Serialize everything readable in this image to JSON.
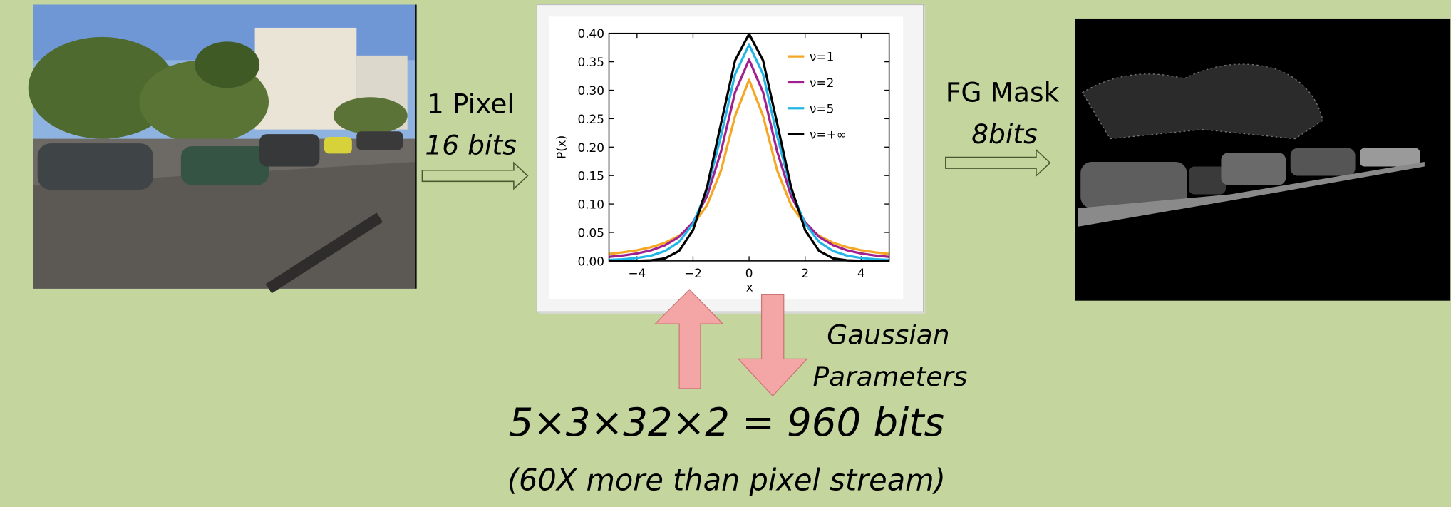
{
  "slide": {
    "input_label": "1 Pixel",
    "input_bits": "16 bits",
    "output_label": "FG Mask",
    "output_bits": "8bits",
    "param_label_1": "Gaussian",
    "param_label_2": "Parameters",
    "equation": "5×3×32×2 = 960 bits",
    "note": "(60X more than pixel stream)"
  },
  "chart_data": {
    "type": "line",
    "x_label": "x",
    "y_label": "P(x)",
    "x": [
      -5,
      -4.5,
      -4,
      -3.5,
      -3,
      -2.5,
      -2,
      -1.5,
      -1,
      -0.5,
      0,
      0.5,
      1,
      1.5,
      2,
      2.5,
      3,
      3.5,
      4,
      4.5,
      5
    ],
    "series": [
      {
        "name": "ν=1",
        "color": "#f5a623",
        "values": [
          0.0122,
          0.015,
          0.0187,
          0.0241,
          0.0318,
          0.0439,
          0.0637,
          0.0979,
          0.1592,
          0.2546,
          0.3183,
          0.2546,
          0.1592,
          0.0979,
          0.0637,
          0.0439,
          0.0318,
          0.0241,
          0.0187,
          0.015,
          0.0122
        ]
      },
      {
        "name": "ν=2",
        "color": "#a0208f",
        "values": [
          0.0071,
          0.0095,
          0.0131,
          0.0186,
          0.0274,
          0.0422,
          0.068,
          0.1141,
          0.1925,
          0.2963,
          0.3536,
          0.2963,
          0.1925,
          0.1141,
          0.068,
          0.0422,
          0.0274,
          0.0186,
          0.0131,
          0.0095,
          0.0071
        ]
      },
      {
        "name": "ν=5",
        "color": "#22b5e8",
        "values": [
          0.0018,
          0.0029,
          0.0051,
          0.0092,
          0.0173,
          0.0333,
          0.0651,
          0.1245,
          0.2197,
          0.3279,
          0.3796,
          0.3279,
          0.2197,
          0.1245,
          0.0651,
          0.0333,
          0.0173,
          0.0092,
          0.0051,
          0.0029,
          0.0018
        ]
      },
      {
        "name": "ν=+∞",
        "color": "#000000",
        "values": [
          0.0,
          0.0,
          0.0001,
          0.0009,
          0.0044,
          0.0175,
          0.054,
          0.1295,
          0.242,
          0.3521,
          0.3989,
          0.3521,
          0.242,
          0.1295,
          0.054,
          0.0175,
          0.0044,
          0.0009,
          0.0001,
          0.0,
          0.0
        ]
      }
    ],
    "xlim": [
      -5,
      5
    ],
    "ylim": [
      0,
      0.4
    ],
    "xticks": [
      {
        "value": -4,
        "label": "−4"
      },
      {
        "value": -2,
        "label": "−2"
      },
      0,
      2,
      4
    ],
    "yticks": [
      {
        "value": 0,
        "label": "0.00"
      },
      {
        "value": 0.05,
        "label": "0.05"
      },
      {
        "value": 0.1,
        "label": "0.10"
      },
      {
        "value": 0.15,
        "label": "0.15"
      },
      {
        "value": 0.2,
        "label": "0.20"
      },
      {
        "value": 0.25,
        "label": "0.25"
      },
      {
        "value": 0.3,
        "label": "0.30"
      },
      {
        "value": 0.35,
        "label": "0.35"
      },
      {
        "value": 0.4,
        "label": "0.40"
      }
    ],
    "legend": "upper right",
    "grid": false
  }
}
